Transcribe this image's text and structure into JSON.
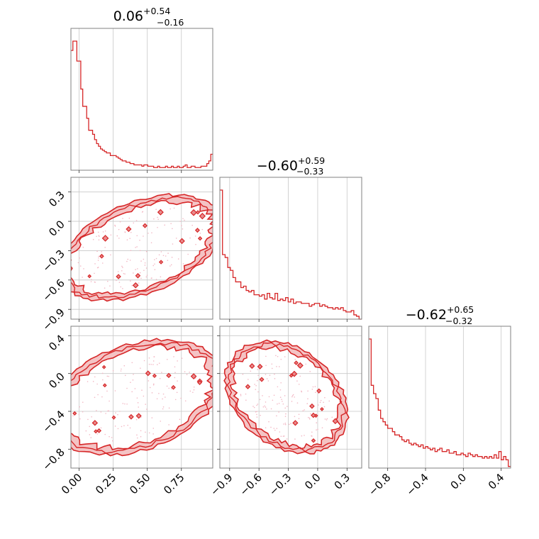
{
  "colors": {
    "series": "#d62728",
    "fill_light": "#f4c3c4",
    "fill_dark": "#e88a8c",
    "grid": "#c8c8c8"
  },
  "chart_data": {
    "type": "corner",
    "parameters": [
      {
        "range": [
          -0.06,
          0.98
        ],
        "title": {
          "median": "0.06",
          "plus": "+0.54",
          "minus": "−0.16"
        },
        "ticks": [
          0.0,
          0.25,
          0.5,
          0.75
        ],
        "tick_labels": [
          "0.00",
          "0.25",
          "0.50",
          "0.75"
        ]
      },
      {
        "range": [
          -1.0,
          0.45
        ],
        "title": {
          "median": "−0.60",
          "plus": "+0.59",
          "minus": "−0.33"
        },
        "ticks": [
          -0.9,
          -0.6,
          -0.3,
          0.0,
          0.3
        ],
        "tick_labels": [
          "−0.9",
          "−0.6",
          "−0.3",
          "0.0",
          "0.3"
        ]
      },
      {
        "range": [
          -1.0,
          0.5
        ],
        "title": {
          "median": "−0.62",
          "plus": "+0.65",
          "minus": "−0.32"
        },
        "ticks": [
          -0.8,
          -0.4,
          0.0,
          0.4
        ],
        "tick_labels": [
          "−0.8",
          "−0.4",
          "0.0",
          "0.4"
        ]
      }
    ],
    "histograms": [
      {
        "param": 0,
        "counts": [
          0.9,
          0.97,
          0.97,
          0.82,
          0.82,
          0.61,
          0.48,
          0.48,
          0.39,
          0.3,
          0.3,
          0.27,
          0.23,
          0.2,
          0.18,
          0.16,
          0.15,
          0.14,
          0.13,
          0.13,
          0.11,
          0.11,
          0.11,
          0.1,
          0.09,
          0.08,
          0.07,
          0.07,
          0.06,
          0.06,
          0.05,
          0.05,
          0.04,
          0.04,
          0.04,
          0.04,
          0.03,
          0.04,
          0.04,
          0.03,
          0.03,
          0.03,
          0.02,
          0.02,
          0.03,
          0.02,
          0.02,
          0.02,
          0.03,
          0.02,
          0.02,
          0.03,
          0.02,
          0.02,
          0.03,
          0.02,
          0.02,
          0.03,
          0.04,
          0.02,
          0.02,
          0.03,
          0.03,
          0.02,
          0.02,
          0.02,
          0.03,
          0.03,
          0.03,
          0.05,
          0.07,
          0.12
        ]
      },
      {
        "param": 1,
        "counts": [
          0.9,
          0.45,
          0.43,
          0.36,
          0.34,
          0.29,
          0.26,
          0.26,
          0.22,
          0.23,
          0.2,
          0.19,
          0.2,
          0.17,
          0.17,
          0.16,
          0.17,
          0.14,
          0.18,
          0.15,
          0.14,
          0.18,
          0.13,
          0.14,
          0.13,
          0.15,
          0.12,
          0.14,
          0.11,
          0.12,
          0.12,
          0.11,
          0.11,
          0.11,
          0.09,
          0.1,
          0.11,
          0.11,
          0.09,
          0.1,
          0.09,
          0.08,
          0.08,
          0.07,
          0.08,
          0.07,
          0.08,
          0.06,
          0.05,
          0.05,
          0.06,
          0.03,
          0.02,
          0.0
        ]
      },
      {
        "param": 2,
        "counts": [
          0.78,
          0.5,
          0.45,
          0.42,
          0.35,
          0.3,
          0.28,
          0.26,
          0.24,
          0.24,
          0.22,
          0.2,
          0.2,
          0.19,
          0.17,
          0.16,
          0.17,
          0.15,
          0.14,
          0.15,
          0.14,
          0.13,
          0.14,
          0.12,
          0.13,
          0.12,
          0.11,
          0.12,
          0.1,
          0.11,
          0.12,
          0.1,
          0.1,
          0.11,
          0.09,
          0.09,
          0.1,
          0.08,
          0.08,
          0.09,
          0.08,
          0.07,
          0.09,
          0.08,
          0.07,
          0.08,
          0.07,
          0.07,
          0.06,
          0.07,
          0.06,
          0.07,
          0.06,
          0.08,
          0.06,
          0.1,
          0.05,
          0.07,
          0.05,
          0.01
        ]
      }
    ],
    "contour_panels": [
      {
        "x_param": 0,
        "y_param": 1,
        "ellipse": {
          "cx": 0.45,
          "cy": -0.27,
          "rx": 0.67,
          "ry": 0.42,
          "angle_deg": 38
        }
      },
      {
        "x_param": 0,
        "y_param": 2,
        "ellipse": {
          "cx": 0.42,
          "cy": -0.25,
          "rx": 0.7,
          "ry": 0.5,
          "angle_deg": 42
        }
      },
      {
        "x_param": 1,
        "y_param": 2,
        "ellipse": {
          "cx": -0.32,
          "cy": -0.25,
          "rx": 0.68,
          "ry": 0.5,
          "angle_deg": -40
        }
      }
    ],
    "xlabel": "",
    "ylabel": "",
    "grid": true
  }
}
